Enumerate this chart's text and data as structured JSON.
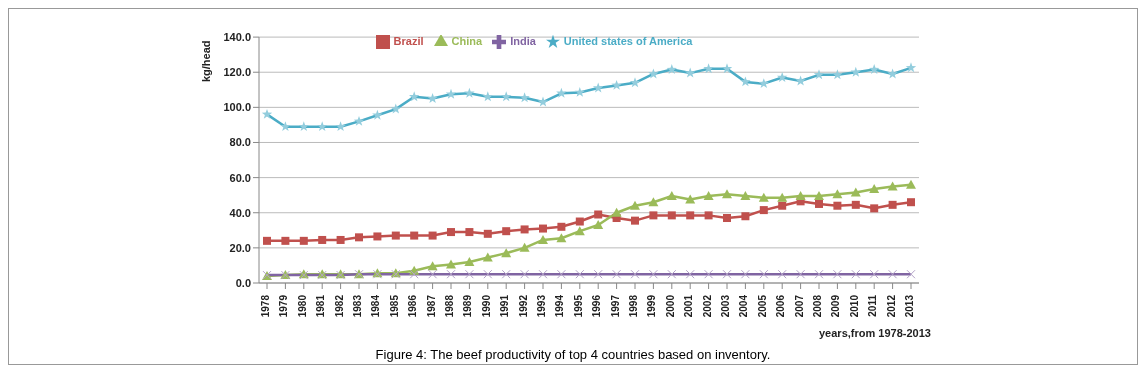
{
  "chart_data": {
    "type": "line",
    "ylabel": "kg/head",
    "xlabel": "years,from 1978-2013",
    "annotations": [
      "Figure 4: The beef productivity of top 4 countries based on inventory."
    ],
    "categories": [
      "1978",
      "1979",
      "1980",
      "1981",
      "1982",
      "1983",
      "1984",
      "1985",
      "1986",
      "1987",
      "1988",
      "1989",
      "1990",
      "1991",
      "1992",
      "1993",
      "1994",
      "1995",
      "1996",
      "1997",
      "1998",
      "1999",
      "2000",
      "2001",
      "2002",
      "2003",
      "2004",
      "2005",
      "2006",
      "2007",
      "2008",
      "2009",
      "2010",
      "2011",
      "2012",
      "2013"
    ],
    "series": [
      {
        "name": "Brazil",
        "color": "#c0504d",
        "marker": "square",
        "values": [
          24,
          24,
          24,
          24.5,
          24.5,
          26,
          26.5,
          27,
          27,
          27,
          29,
          29,
          28,
          29.5,
          30.5,
          31,
          32,
          35,
          39,
          37,
          35.5,
          38.5,
          38.5,
          38.5,
          38.5,
          37,
          38,
          41.5,
          44,
          46.5,
          45,
          44,
          44.5,
          42.5,
          44.5,
          46
        ]
      },
      {
        "name": "China",
        "color": "#9bbb59",
        "marker": "triangle",
        "values": [
          4,
          4.5,
          5,
          5,
          5,
          5,
          5.5,
          5.5,
          7,
          9.5,
          10.5,
          12,
          14.5,
          17,
          20,
          24.5,
          25.5,
          29.5,
          33,
          40,
          44,
          46,
          49.5,
          47.5,
          49.5,
          50.5,
          49.5,
          48.5,
          48.5,
          49.5,
          49.5,
          50.5,
          51.5,
          53.5,
          55,
          56
        ]
      },
      {
        "name": "India",
        "color": "#8064a2",
        "marker": "cross",
        "values": [
          4.5,
          4.5,
          4.5,
          4.5,
          4.5,
          5,
          5,
          5,
          5,
          5,
          5,
          5,
          5,
          5,
          5,
          5,
          5,
          5,
          5,
          5,
          5,
          5,
          5,
          5,
          5,
          5,
          5,
          5,
          5,
          5,
          5,
          5,
          5,
          5,
          5,
          5
        ]
      },
      {
        "name": "United states of America",
        "color": "#4bacc6",
        "marker": "star",
        "values": [
          96,
          89,
          89,
          89,
          89,
          92,
          95.5,
          99,
          106,
          105,
          107.5,
          108,
          106,
          106,
          105.5,
          103,
          108,
          108.5,
          111,
          112.5,
          114,
          119,
          121.5,
          119.5,
          122,
          122,
          114.5,
          113.5,
          117,
          115,
          118.5,
          118.5,
          120,
          121.5,
          119,
          122.5
        ]
      }
    ],
    "ylim": [
      0,
      140
    ],
    "yticks": [
      {
        "value": 0,
        "label": "0.0"
      },
      {
        "value": 20,
        "label": "20.0"
      },
      {
        "value": 40,
        "label": "40.0"
      },
      {
        "value": 60,
        "label": "60.0"
      },
      {
        "value": 80,
        "label": "80.0"
      },
      {
        "value": 100,
        "label": "100.0"
      },
      {
        "value": 120,
        "label": "120.0"
      },
      {
        "value": 140,
        "label": "140.0"
      }
    ],
    "grid": "y",
    "legend": "top"
  }
}
